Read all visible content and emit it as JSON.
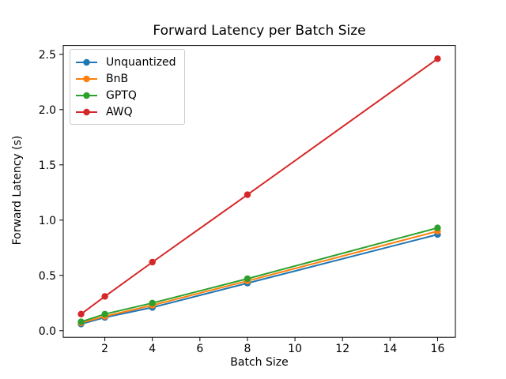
{
  "chart_data": {
    "type": "line",
    "title": "Forward Latency per Batch Size",
    "xlabel": "Batch Size",
    "ylabel": "Forward Latency (s)",
    "x": [
      1,
      2,
      4,
      8,
      16
    ],
    "series": [
      {
        "name": "Unquantized",
        "color": "#1f77b4",
        "values": [
          0.06,
          0.12,
          0.21,
          0.43,
          0.87
        ]
      },
      {
        "name": "BnB",
        "color": "#ff7f0e",
        "values": [
          0.07,
          0.13,
          0.23,
          0.45,
          0.9
        ]
      },
      {
        "name": "GPTQ",
        "color": "#2ca02c",
        "values": [
          0.08,
          0.15,
          0.25,
          0.47,
          0.93
        ]
      },
      {
        "name": "AWQ",
        "color": "#d62728",
        "values": [
          0.15,
          0.31,
          0.62,
          1.23,
          2.46
        ]
      }
    ],
    "xlim": [
      0.25,
      16.75
    ],
    "ylim": [
      -0.06,
      2.58
    ],
    "xticks": [
      2,
      4,
      6,
      8,
      10,
      12,
      14,
      16
    ],
    "yticks": [
      0.0,
      0.5,
      1.0,
      1.5,
      2.0,
      2.5
    ],
    "grid": false,
    "legend_position": "upper left",
    "marker": "o",
    "frame_color": "#000000",
    "background_color": "#ffffff"
  }
}
